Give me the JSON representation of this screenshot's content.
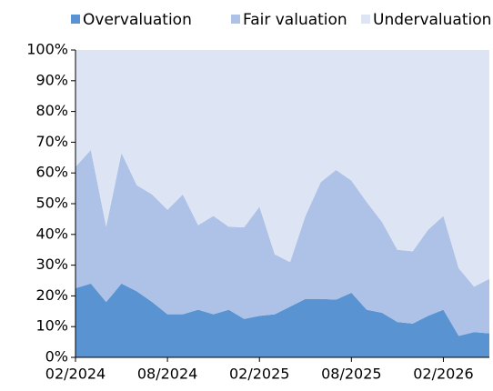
{
  "chart_data": {
    "type": "stacked_area",
    "categories": [
      "02/2024",
      null,
      null,
      null,
      null,
      null,
      "08/2024",
      null,
      null,
      null,
      null,
      null,
      "02/2025",
      null,
      null,
      null,
      null,
      null,
      "08/2025",
      null,
      null,
      null,
      null,
      null,
      "02/2026",
      null,
      null,
      null
    ],
    "series": [
      {
        "name": "Overvaluation",
        "color": "#5a93d2",
        "values": [
          22.5,
          24,
          18,
          24,
          21.5,
          18,
          14,
          14,
          15.5,
          14,
          15.5,
          12.5,
          13.5,
          14,
          16.5,
          19,
          19,
          18.8,
          21,
          15.5,
          14.5,
          11.5,
          11,
          13.5,
          15.5,
          7,
          8.2,
          7.8
        ]
      },
      {
        "name": "Fair valuation",
        "color": "#adc2e6",
        "values": [
          39.5,
          43.5,
          24.5,
          42.5,
          34.5,
          35,
          34,
          39,
          27.5,
          32,
          27,
          29.8,
          35.5,
          19.5,
          14.5,
          27,
          38,
          42.2,
          36.5,
          35,
          29.5,
          23.5,
          23.5,
          28,
          30.5,
          22,
          14.8,
          17.7
        ]
      },
      {
        "name": "Undervaluation",
        "color": "#dde5f5",
        "values": [
          38,
          32.5,
          57.5,
          33.5,
          44,
          47,
          52,
          47,
          57,
          54,
          57.5,
          57.7,
          51,
          66.5,
          69,
          54,
          43,
          39,
          42.5,
          49.5,
          56,
          65,
          65.5,
          58.5,
          54,
          71,
          77,
          74.5
        ]
      }
    ],
    "ylim": [
      0,
      100
    ],
    "yticks": [
      {
        "value": 0,
        "label": "0%"
      },
      {
        "value": 10,
        "label": "10%"
      },
      {
        "value": 20,
        "label": "20%"
      },
      {
        "value": 30,
        "label": "30%"
      },
      {
        "value": 40,
        "label": "40%"
      },
      {
        "value": 50,
        "label": "50%"
      },
      {
        "value": 60,
        "label": "60%"
      },
      {
        "value": 70,
        "label": "70%"
      },
      {
        "value": 80,
        "label": "80%"
      },
      {
        "value": 90,
        "label": "90%"
      },
      {
        "value": 100,
        "label": "100%"
      }
    ],
    "legend": "top",
    "grid": false
  }
}
